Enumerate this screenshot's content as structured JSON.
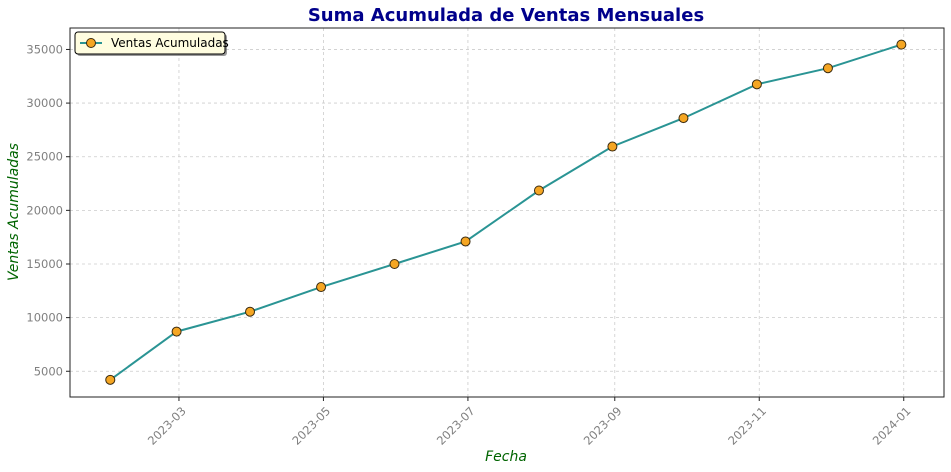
{
  "chart_data": {
    "type": "line",
    "title": "Suma Acumulada de Ventas Mensuales",
    "xlabel": "Fecha",
    "ylabel": "Ventas Acumuladas",
    "x": [
      "2023-01-31",
      "2023-02-28",
      "2023-03-31",
      "2023-04-30",
      "2023-05-31",
      "2023-06-30",
      "2023-07-31",
      "2023-08-31",
      "2023-09-30",
      "2023-10-31",
      "2023-11-30",
      "2023-12-31"
    ],
    "x_ticks": [
      "2023-03",
      "2023-05",
      "2023-07",
      "2023-09",
      "2023-11",
      "2024-01"
    ],
    "x_tick_dates": [
      "2023-03-01",
      "2023-05-01",
      "2023-07-01",
      "2023-09-01",
      "2023-11-01",
      "2024-01-01"
    ],
    "xlim": [
      "2023-01-14",
      "2024-01-18"
    ],
    "y_ticks": [
      5000,
      10000,
      15000,
      20000,
      25000,
      30000,
      35000
    ],
    "ylim": [
      2600,
      37000
    ],
    "grid": true,
    "legend_position": "top-left",
    "series": [
      {
        "name": "Ventas Acumuladas",
        "values": [
          4200,
          8700,
          10550,
          12850,
          15000,
          17100,
          21850,
          25950,
          28600,
          31750,
          33250,
          35450
        ],
        "line_color": "#2a9494",
        "marker_color": "#f5a623",
        "marker_edge": "#3a2a10"
      }
    ]
  }
}
